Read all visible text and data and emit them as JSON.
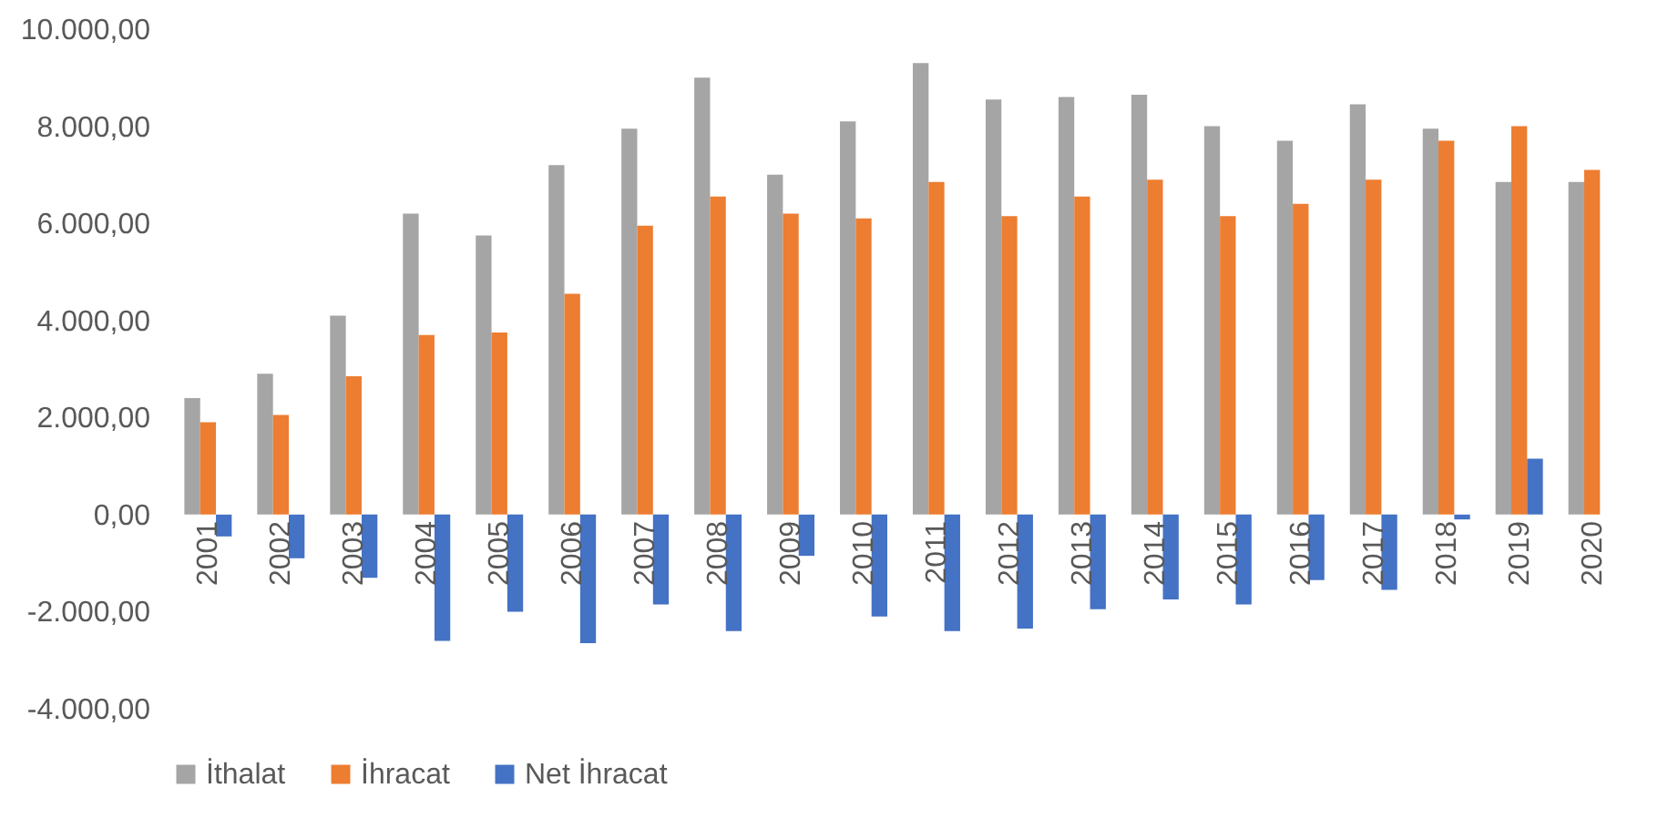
{
  "chart_data": {
    "type": "bar",
    "categories": [
      "2001",
      "2002",
      "2003",
      "2004",
      "2005",
      "2006",
      "2007",
      "2008",
      "2009",
      "2010",
      "2011",
      "2012",
      "2013",
      "2014",
      "2015",
      "2016",
      "2017",
      "2018",
      "2019",
      "2020"
    ],
    "series": [
      {
        "name": "İthalat",
        "color": "#a5a5a5",
        "values": [
          2400,
          2900,
          4100,
          6200,
          5750,
          7200,
          7950,
          9000,
          7000,
          8100,
          9300,
          8550,
          8600,
          8650,
          8000,
          7700,
          8450,
          7950,
          6850,
          6850
        ]
      },
      {
        "name": "İhracat",
        "color": "#ed7d31",
        "values": [
          1900,
          2050,
          2850,
          3700,
          3750,
          4550,
          5950,
          6550,
          6200,
          6100,
          6850,
          6150,
          6550,
          6900,
          6150,
          6400,
          6900,
          7700,
          8000,
          7100
        ]
      },
      {
        "name": "Net İhracat",
        "color": "#4472c4",
        "values": [
          -450,
          -900,
          -1300,
          -2600,
          -2000,
          -2650,
          -1850,
          -2400,
          -850,
          -2100,
          -2400,
          -2350,
          -1950,
          -1750,
          -1850,
          -1350,
          -1550,
          -100,
          1150,
          null
        ]
      }
    ],
    "ylim": [
      -4000,
      10000
    ],
    "yticks": [
      {
        "value": -4000,
        "label": "-4.000,00"
      },
      {
        "value": -2000,
        "label": "-2.000,00"
      },
      {
        "value": 0,
        "label": "0,00"
      },
      {
        "value": 2000,
        "label": "2.000,00"
      },
      {
        "value": 4000,
        "label": "4.000,00"
      },
      {
        "value": 6000,
        "label": "6.000,00"
      },
      {
        "value": 8000,
        "label": "8.000,00"
      },
      {
        "value": 10000,
        "label": "10.000,00"
      }
    ],
    "legend": "bottom"
  }
}
